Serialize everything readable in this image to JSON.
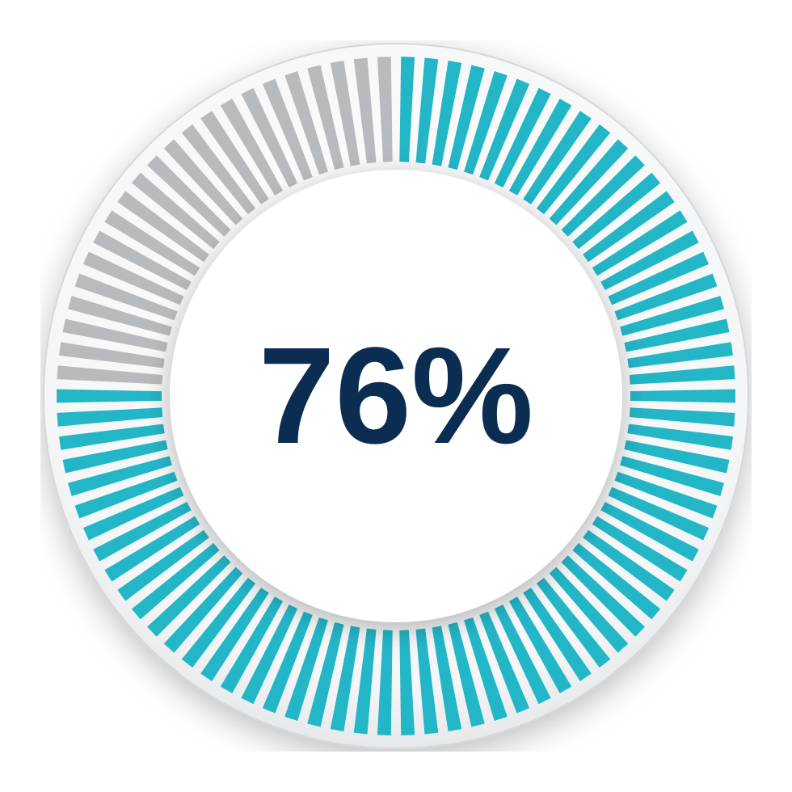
{
  "gauge": {
    "value": 76,
    "display_text": "76%",
    "total_ticks": 90,
    "tick_width_deg": 2.3,
    "tick_inner_radius": 290,
    "tick_outer_radius": 420,
    "outer_ring_radius": 436,
    "inner_disc_radius": 280,
    "active_color": "#23b6c7",
    "inactive_color": "#b8bbbe",
    "background_color": "#ffffff",
    "outer_ring_stroke": "#d4d7d9",
    "text_color": "#0c2d52",
    "text_fontsize": 170,
    "text_fontweight": 700,
    "shadow_color": "rgba(0,0,0,0.22)",
    "start_angle_deg": -90,
    "sweep_direction": "clockwise"
  }
}
